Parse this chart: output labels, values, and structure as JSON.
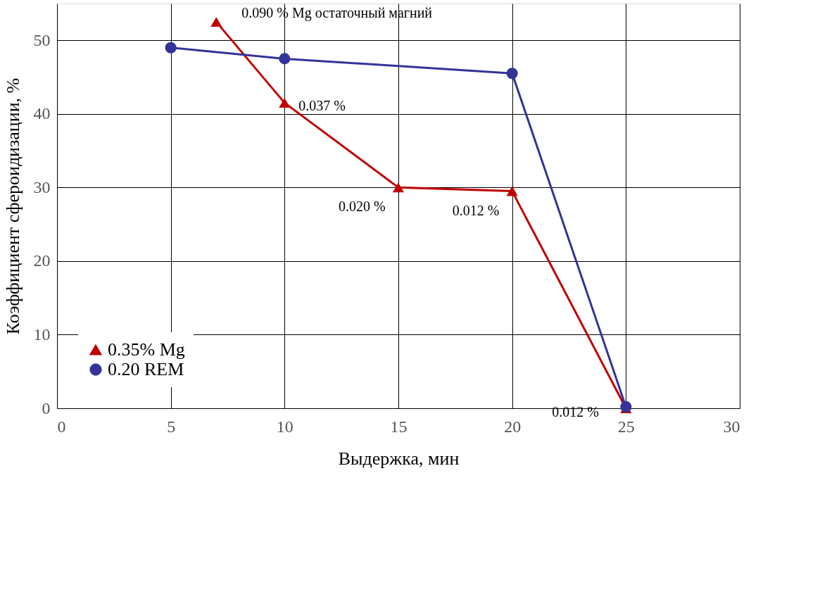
{
  "chart_data": {
    "type": "line",
    "xlabel": "Выдержка, мин",
    "ylabel": "Коэффициент сфероидизации, %",
    "xlim": [
      0,
      30
    ],
    "xticks": [
      0,
      5,
      10,
      15,
      20,
      25,
      30
    ],
    "ylim": [
      0,
      55
    ],
    "yticks": [
      0,
      10,
      20,
      30,
      40,
      50
    ],
    "grid": true,
    "legend": "bottom left",
    "series": [
      {
        "name": "0.35% Mg",
        "color": "#c00000",
        "marker": "triangle",
        "x": [
          7,
          10,
          15,
          20,
          25
        ],
        "values": [
          52.5,
          41.5,
          30,
          29.5,
          0
        ]
      },
      {
        "name": "0.20 REM",
        "color": "#333399",
        "marker": "circle",
        "x": [
          5,
          10,
          20,
          25
        ],
        "values": [
          49,
          47.5,
          45.5,
          0.2
        ]
      }
    ],
    "annotations": [
      {
        "text": "0.090 % Mg остаточный магний",
        "x": 7,
        "y": 52.5
      },
      {
        "text": "0.037 %",
        "x": 10,
        "y": 41.5
      },
      {
        "text": "0.020 %",
        "x": 15,
        "y": 30
      },
      {
        "text": "0.012 %",
        "x": 20,
        "y": 29.5
      },
      {
        "text": "0.012 %",
        "x": 25,
        "y": 0
      }
    ]
  }
}
